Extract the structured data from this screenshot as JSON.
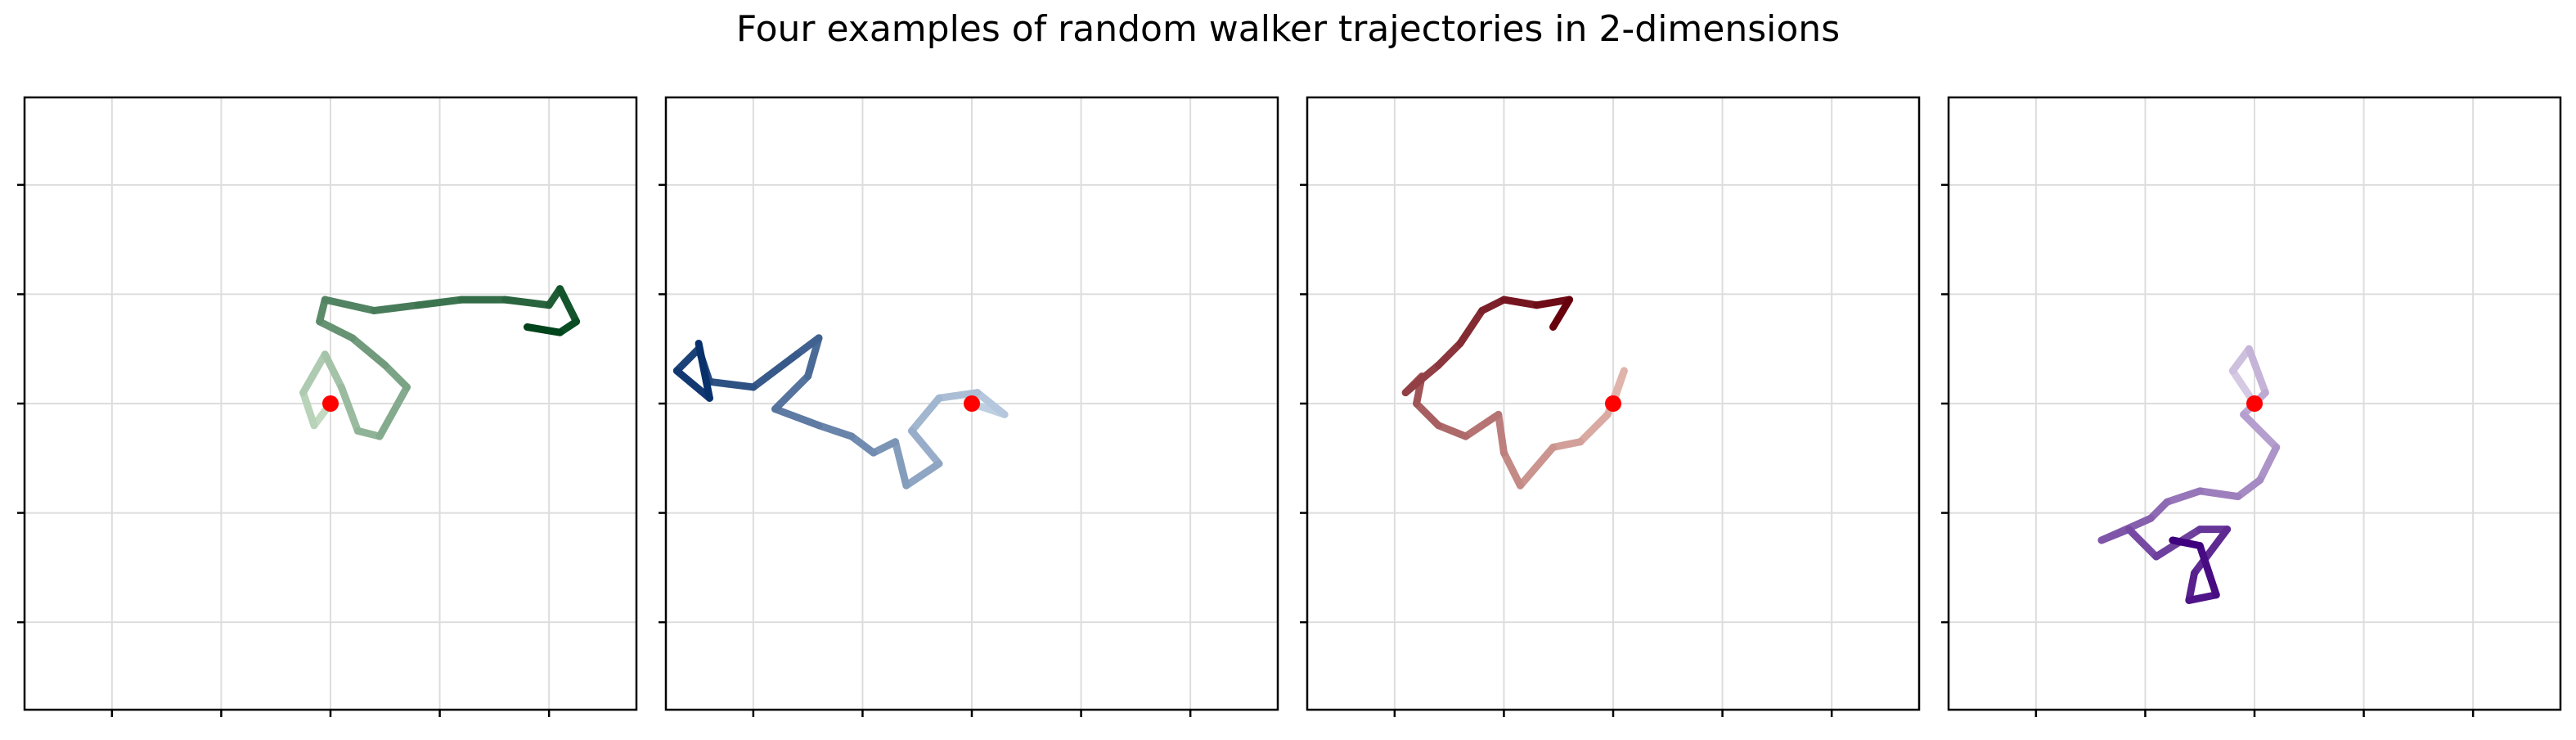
{
  "figure": {
    "title": "Four examples of random walker trajectories in 2-dimensions"
  },
  "chart_data": [
    {
      "type": "line",
      "title": "",
      "xlabel": "",
      "ylabel": "",
      "xlim": [
        -2.8,
        2.8
      ],
      "ylim": [
        -2.8,
        2.8
      ],
      "xticks": [
        -2,
        -1,
        0,
        1,
        2
      ],
      "yticks": [
        -2,
        -1,
        0,
        1,
        2
      ],
      "tick_labels_shown": false,
      "grid": true,
      "colormap": "Greens",
      "color_light": "#e5f5e0",
      "color_dark": "#00441b",
      "start_marker": {
        "x": 0,
        "y": 0,
        "color": "#ff0000"
      },
      "series": [
        {
          "x": [
            0,
            -0.15,
            -0.25,
            -0.05,
            0.1,
            0.25,
            0.45,
            0.7,
            0.5,
            0.2,
            -0.1,
            -0.05,
            0.4,
            0.8,
            1.2,
            1.6,
            2.0,
            2.1,
            2.25,
            2.1,
            1.8
          ],
          "y": [
            0,
            -0.2,
            0.1,
            0.45,
            0.15,
            -0.25,
            -0.3,
            0.15,
            0.35,
            0.6,
            0.75,
            0.95,
            0.85,
            0.9,
            0.95,
            0.95,
            0.9,
            1.05,
            0.75,
            0.65,
            0.7
          ]
        }
      ]
    },
    {
      "type": "line",
      "title": "",
      "xlabel": "",
      "ylabel": "",
      "xlim": [
        -2.8,
        2.8
      ],
      "ylim": [
        -2.8,
        2.8
      ],
      "xticks": [
        -2,
        -1,
        0,
        1,
        2
      ],
      "yticks": [
        -2,
        -1,
        0,
        1,
        2
      ],
      "tick_labels_shown": false,
      "grid": true,
      "colormap": "Blues",
      "color_light": "#deebf7",
      "color_dark": "#08306b",
      "start_marker": {
        "x": 0,
        "y": 0,
        "color": "#ff0000"
      },
      "series": [
        {
          "x": [
            0,
            0.3,
            0.05,
            -0.3,
            -0.55,
            -0.3,
            -0.6,
            -0.7,
            -0.9,
            -1.1,
            -1.4,
            -1.8,
            -1.5,
            -1.4,
            -1.6,
            -2.0,
            -2.4,
            -2.5,
            -2.7,
            -2.4,
            -2.5
          ],
          "y": [
            0,
            -0.1,
            0.1,
            0.05,
            -0.25,
            -0.55,
            -0.75,
            -0.35,
            -0.45,
            -0.3,
            -0.2,
            -0.05,
            0.25,
            0.6,
            0.45,
            0.15,
            0.2,
            0.5,
            0.3,
            0.05,
            0.55
          ]
        }
      ]
    },
    {
      "type": "line",
      "title": "",
      "xlabel": "",
      "ylabel": "",
      "xlim": [
        -2.8,
        2.8
      ],
      "ylim": [
        -2.8,
        2.8
      ],
      "xticks": [
        -2,
        -1,
        0,
        1,
        2
      ],
      "yticks": [
        -2,
        -1,
        0,
        1,
        2
      ],
      "tick_labels_shown": false,
      "grid": true,
      "colormap": "Reds",
      "color_light": "#fee0d2",
      "color_dark": "#67000d",
      "start_marker": {
        "x": 0,
        "y": 0,
        "color": "#ff0000"
      },
      "series": [
        {
          "x": [
            0,
            0.1,
            -0.05,
            -0.3,
            -0.55,
            -0.85,
            -1.0,
            -1.05,
            -1.35,
            -1.6,
            -1.8,
            -1.75,
            -1.9,
            -1.6,
            -1.4,
            -1.2,
            -1.0,
            -0.7,
            -0.4,
            -0.55
          ],
          "y": [
            0,
            0.3,
            -0.1,
            -0.35,
            -0.4,
            -0.75,
            -0.45,
            -0.1,
            -0.3,
            -0.2,
            0.0,
            0.25,
            0.1,
            0.35,
            0.55,
            0.85,
            0.95,
            0.9,
            0.95,
            0.7
          ]
        }
      ]
    },
    {
      "type": "line",
      "title": "",
      "xlabel": "",
      "ylabel": "",
      "xlim": [
        -2.8,
        2.8
      ],
      "ylim": [
        -2.8,
        2.8
      ],
      "xticks": [
        -2,
        -1,
        0,
        1,
        2
      ],
      "yticks": [
        -2,
        -1,
        0,
        1,
        2
      ],
      "tick_labels_shown": false,
      "grid": true,
      "colormap": "Purples",
      "color_light": "#efedf5",
      "color_dark": "#3f007d",
      "start_marker": {
        "x": 0,
        "y": 0,
        "color": "#ff0000"
      },
      "series": [
        {
          "x": [
            0,
            -0.2,
            -0.05,
            0.1,
            -0.1,
            0.2,
            0.05,
            -0.15,
            -0.5,
            -0.8,
            -0.95,
            -1.4,
            -1.15,
            -0.9,
            -0.5,
            -0.25,
            -0.55,
            -0.6,
            -0.35,
            -0.5,
            -0.75
          ],
          "y": [
            0,
            0.3,
            0.5,
            0.1,
            -0.1,
            -0.4,
            -0.7,
            -0.85,
            -0.8,
            -0.9,
            -1.05,
            -1.25,
            -1.15,
            -1.4,
            -1.15,
            -1.15,
            -1.55,
            -1.8,
            -1.75,
            -1.3,
            -1.25
          ]
        }
      ]
    }
  ]
}
